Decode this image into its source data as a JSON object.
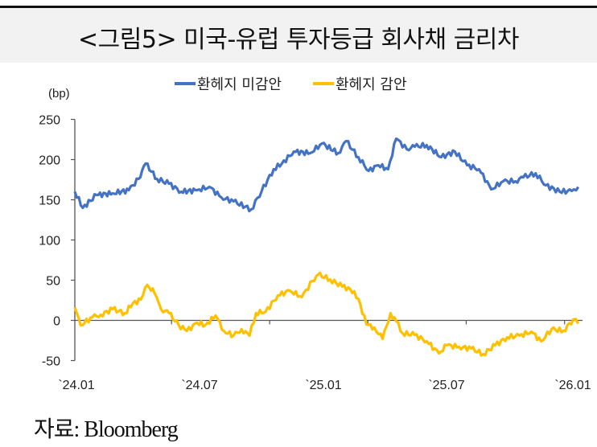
{
  "title": "<그림5> 미국-유럽 투자등급 회사채 금리차",
  "source": "자료: Bloomberg",
  "chart_data": {
    "type": "line",
    "title": "<그림5> 미국-유럽 투자등급 회사채 금리차",
    "ylabel": "(bp)",
    "xlabel": "",
    "ylim": [
      -50,
      250
    ],
    "yticks": [
      "250",
      "200",
      "150",
      "100",
      "50",
      "0",
      "-50"
    ],
    "ytick_values": [
      250,
      200,
      150,
      100,
      50,
      0,
      -50
    ],
    "xlim_months_from_2024_01": [
      0,
      24
    ],
    "xtick_labels": [
      "`24.01",
      "`24.07",
      "`25.01",
      "`25.07",
      "`26.01"
    ],
    "xtick_months": [
      0,
      6,
      12,
      18,
      24
    ],
    "legend_position": "top-center",
    "grid": false,
    "series": [
      {
        "name": "환헤지 미감안",
        "color": "#4472C4",
        "x_months": [
          0,
          0.38,
          1.03,
          1.8,
          2.57,
          3.03,
          3.37,
          3.91,
          4.48,
          5.06,
          5.82,
          6.4,
          6.97,
          7.55,
          8.39,
          8.89,
          9.46,
          9.85,
          10.42,
          11.19,
          11.76,
          12.53,
          12.91,
          13.49,
          13.98,
          14.44,
          14.9,
          15.29,
          15.79,
          16.17,
          16.74,
          17.43,
          18.08,
          18.66,
          19.23,
          19.81,
          20.38,
          20.96,
          21.34,
          21.92,
          22.41,
          23.07,
          23.64,
          23.95
        ],
        "values": [
          160,
          140,
          156,
          158,
          162,
          176,
          195,
          176,
          170,
          160,
          162,
          166,
          153,
          148,
          138,
          161,
          188,
          195,
          210,
          208,
          220,
          208,
          223,
          203,
          186,
          193,
          188,
          226,
          213,
          216,
          218,
          203,
          210,
          193,
          188,
          163,
          173,
          173,
          178,
          183,
          168,
          160,
          161,
          166
        ]
      },
      {
        "name": "환헤지 감안",
        "color": "#FFC000",
        "x_months": [
          0,
          0.27,
          0.84,
          1.23,
          1.8,
          2.38,
          2.76,
          3.14,
          3.45,
          3.79,
          4.1,
          4.48,
          4.94,
          5.33,
          5.82,
          6.21,
          6.7,
          7.09,
          7.55,
          7.93,
          8.31,
          8.62,
          9.08,
          9.66,
          10.23,
          10.8,
          11.3,
          11.57,
          12.15,
          12.72,
          13.1,
          13.49,
          13.87,
          14.25,
          14.64,
          15.02,
          15.29,
          15.59,
          16.17,
          16.74,
          17.32,
          17.7,
          18.28,
          18.85,
          19.43,
          20,
          20.57,
          21.15,
          21.72,
          22.18,
          22.68,
          23.25,
          23.71,
          23.95
        ],
        "values": [
          16,
          -6,
          4,
          7,
          14,
          9,
          21,
          26,
          44,
          34,
          14,
          9,
          -6,
          -13,
          -3,
          -6,
          6,
          -13,
          -19,
          -11,
          -19,
          9,
          11,
          31,
          37,
          29,
          49,
          57,
          51,
          42,
          39,
          27,
          -5,
          -9,
          -23,
          9,
          -1,
          -16,
          -18,
          -26,
          -41,
          -31,
          -33,
          -35,
          -42,
          -31,
          -21,
          -19,
          -14,
          -26,
          -11,
          -13,
          1,
          -4
        ]
      }
    ]
  }
}
